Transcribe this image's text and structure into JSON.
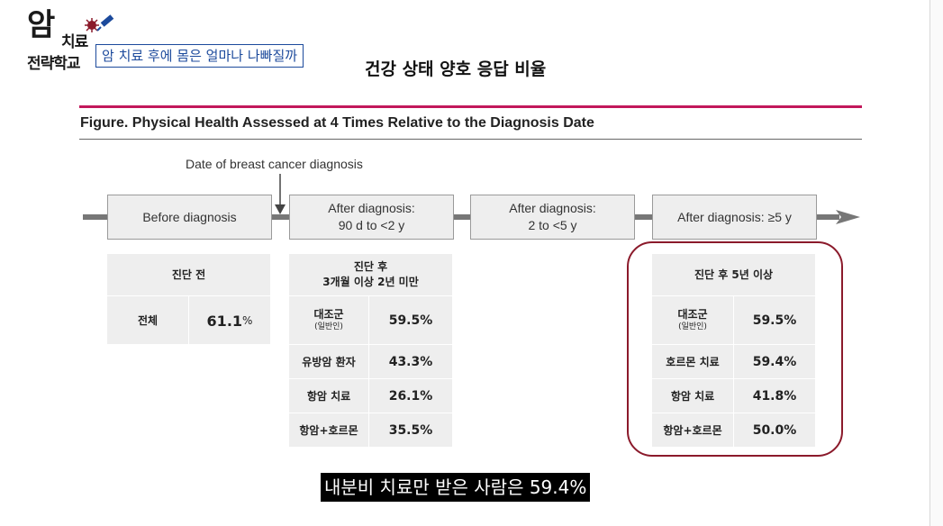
{
  "logo": {
    "big": "암",
    "small": "치료",
    "bottom": "전략학교"
  },
  "subtitle": "암 치료 후에 몸은 얼마나 나빠질까",
  "main_title": "건강 상태 양호 응답 비율",
  "figure_title": "Figure. Physical Health Assessed at 4 Times Relative to the Diagnosis Date",
  "diagnosis_label": "Date of breast cancer diagnosis",
  "stages": [
    {
      "line1": "Before diagnosis",
      "line2": ""
    },
    {
      "line1": "After diagnosis:",
      "line2": "90 d to <2 y"
    },
    {
      "line1": "After diagnosis:",
      "line2": "2 to <5 y"
    },
    {
      "line1": "After diagnosis: ≥5 y",
      "line2": ""
    }
  ],
  "table_before": {
    "header": "진단 전",
    "rows": [
      {
        "label": "전체",
        "value": "61.1",
        "unit": "%"
      }
    ]
  },
  "table_90d": {
    "header_line1": "진단 후",
    "header_line2": "3개월 이상 2년 미만",
    "rows": [
      {
        "label": "대조군",
        "sub": "(일반인)",
        "value": "59.5%"
      },
      {
        "label": "유방암 환자",
        "sub": "",
        "value": "43.3%"
      },
      {
        "label": "항암 치료",
        "sub": "",
        "value": "26.1%"
      },
      {
        "label": "항암+호르몬",
        "sub": "",
        "value": "35.5%"
      }
    ]
  },
  "table_5y": {
    "header": "진단 후 5년 이상",
    "rows": [
      {
        "label": "대조군",
        "sub": "(일반인)",
        "value": "59.5%"
      },
      {
        "label": "호르몬 치료",
        "sub": "",
        "value": "59.4%"
      },
      {
        "label": "항암 치료",
        "sub": "",
        "value": "41.8%"
      },
      {
        "label": "항암+호르몬",
        "sub": "",
        "value": "50.0%"
      }
    ]
  },
  "caption": "내분비 치료만 받은 사람은 59.4%",
  "colors": {
    "accent_line": "#c2185b",
    "highlight": "#8b1a2b",
    "subtitle": "#1c4a9c"
  }
}
